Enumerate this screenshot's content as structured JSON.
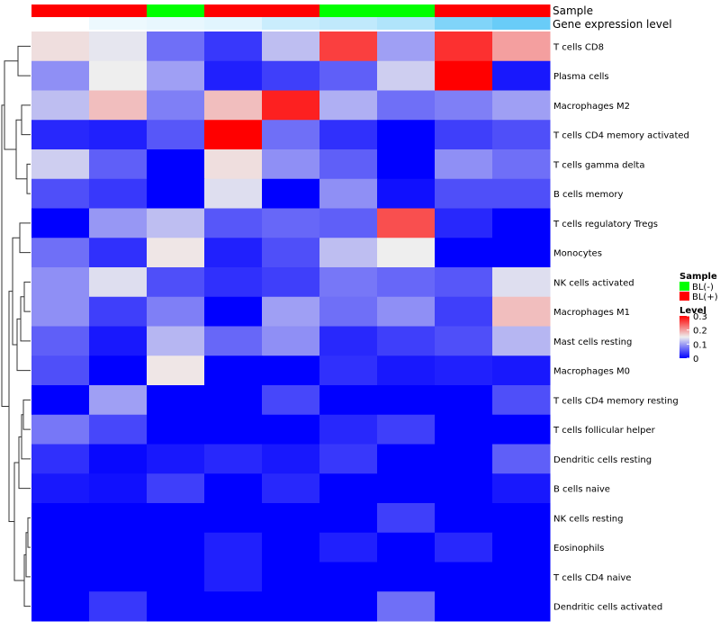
{
  "chart_data": {
    "type": "heatmap",
    "annotation_titles": [
      "Sample",
      "Gene expression level"
    ],
    "columns": [
      {
        "sample": "BL(+)",
        "gene_level": 0.0
      },
      {
        "sample": "BL(+)",
        "gene_level": 0.1
      },
      {
        "sample": "BL(-)",
        "gene_level": 0.13
      },
      {
        "sample": "BL(+)",
        "gene_level": 0.17
      },
      {
        "sample": "BL(+)",
        "gene_level": 0.3
      },
      {
        "sample": "BL(-)",
        "gene_level": 0.36
      },
      {
        "sample": "BL(-)",
        "gene_level": 0.45
      },
      {
        "sample": "BL(+)",
        "gene_level": 0.72
      },
      {
        "sample": "BL(+)",
        "gene_level": 0.85
      }
    ],
    "rows": [
      "T cells CD8",
      "Plasma cells",
      "Macrophages M2",
      "T cells CD4 memory activated",
      "T cells gamma delta",
      "B cells memory",
      "T cells regulatory  Tregs",
      "Monocytes",
      "NK cells activated",
      "Macrophages M1",
      "Mast cells resting",
      "Macrophages M0",
      "T cells CD4 memory resting",
      "T cells follicular helper",
      "Dendritic cells resting",
      "B cells naive",
      "NK cells resting",
      "Eosinophils",
      "T cells CD4 naive",
      "Dendritic cells activated"
    ],
    "values": [
      [
        0.16,
        0.145,
        0.07,
        0.035,
        0.12,
        0.26,
        0.1,
        0.27,
        0.2
      ],
      [
        0.09,
        0.15,
        0.1,
        0.02,
        0.04,
        0.06,
        0.13,
        0.3,
        0.015
      ],
      [
        0.12,
        0.18,
        0.08,
        0.18,
        0.28,
        0.11,
        0.07,
        0.08,
        0.1
      ],
      [
        0.025,
        0.02,
        0.055,
        0.3,
        0.07,
        0.03,
        0.0,
        0.04,
        0.05
      ],
      [
        0.13,
        0.06,
        0.0,
        0.16,
        0.09,
        0.06,
        0.0,
        0.09,
        0.07
      ],
      [
        0.05,
        0.035,
        0.0,
        0.14,
        0.0,
        0.09,
        0.01,
        0.05,
        0.05
      ],
      [
        0.0,
        0.095,
        0.12,
        0.055,
        0.065,
        0.06,
        0.25,
        0.025,
        0.0
      ],
      [
        0.07,
        0.03,
        0.155,
        0.02,
        0.05,
        0.12,
        0.15,
        0.0,
        0.0
      ],
      [
        0.09,
        0.14,
        0.05,
        0.03,
        0.04,
        0.075,
        0.065,
        0.055,
        0.14
      ],
      [
        0.09,
        0.04,
        0.08,
        0.0,
        0.1,
        0.07,
        0.09,
        0.04,
        0.18
      ],
      [
        0.06,
        0.015,
        0.115,
        0.065,
        0.09,
        0.025,
        0.04,
        0.05,
        0.115
      ],
      [
        0.05,
        0.0,
        0.155,
        0.0,
        0.0,
        0.03,
        0.015,
        0.02,
        0.015
      ],
      [
        0.0,
        0.1,
        0.0,
        0.0,
        0.045,
        0.0,
        0.0,
        0.0,
        0.05
      ],
      [
        0.075,
        0.045,
        0.0,
        0.0,
        0.0,
        0.025,
        0.04,
        0.0,
        0.0
      ],
      [
        0.03,
        0.005,
        0.015,
        0.025,
        0.015,
        0.035,
        0.0,
        0.0,
        0.06
      ],
      [
        0.015,
        0.01,
        0.04,
        0.0,
        0.025,
        0.0,
        0.0,
        0.0,
        0.015
      ],
      [
        0.0,
        0.0,
        0.0,
        0.0,
        0.0,
        0.0,
        0.04,
        0.0,
        0.0
      ],
      [
        0.0,
        0.0,
        0.0,
        0.02,
        0.0,
        0.02,
        0.0,
        0.025,
        0.0
      ],
      [
        0.0,
        0.0,
        0.0,
        0.02,
        0.0,
        0.0,
        0.0,
        0.0,
        0.0
      ],
      [
        0.0,
        0.035,
        0.0,
        0.0,
        0.0,
        0.0,
        0.07,
        0.0,
        0.0
      ]
    ],
    "color_scale": {
      "stops": [
        {
          "value": 0.0,
          "color": "#0000ff"
        },
        {
          "value": 0.15,
          "color": "#eeeeee"
        },
        {
          "value": 0.3,
          "color": "#ff0000"
        }
      ]
    },
    "annotation_colors": {
      "sample": {
        "BL(-)": "#00ff00",
        "BL(+)": "#ff0000"
      },
      "gene_level": {
        "low": "#ffffff",
        "high": "#4fc3f7"
      }
    },
    "legend": {
      "placement": "right",
      "sample_title": "Sample",
      "sample_items": [
        "BL(-)",
        "BL(+)"
      ],
      "level_title": "Level",
      "level_ticks": [
        "0.3",
        "0.2",
        "0.1",
        "0"
      ],
      "level_tick_values": [
        0.3,
        0.2,
        0.1,
        0.0
      ]
    },
    "row_dendrogram": true,
    "column_dendrogram": false
  }
}
